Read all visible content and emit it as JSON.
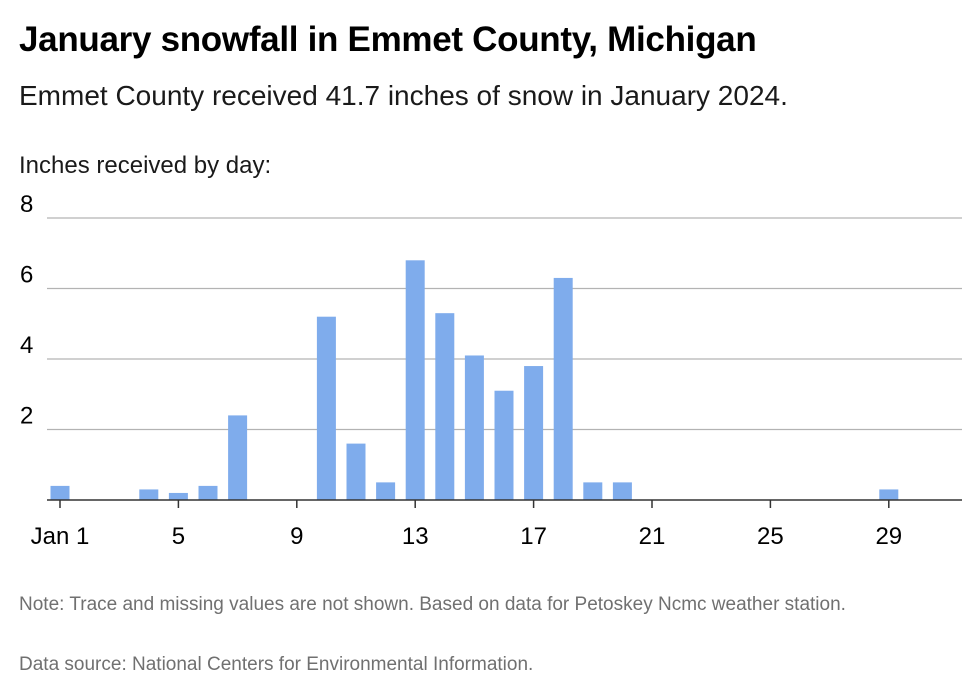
{
  "title": "January snowfall in Emmet County, Michigan",
  "subtitle": "Emmet County received 41.7 inches of snow in January 2024.",
  "axis_title": "Inches received by day:",
  "note": "Note: Trace and missing values are not shown. Based on data for Petoskey Ncmc weather station.",
  "source": "Data source: National Centers for Environmental Information.",
  "colors": {
    "bar": "#7facec",
    "grid": "#b3b3b3",
    "baseline": "#333333"
  },
  "chart_data": {
    "type": "bar",
    "title": "January snowfall in Emmet County, Michigan",
    "ylabel": "Inches received by day:",
    "ylim": [
      0,
      8
    ],
    "yticks": [
      2,
      4,
      6,
      8
    ],
    "xticks": [
      {
        "day": 1,
        "label": "Jan 1"
      },
      {
        "day": 5,
        "label": "5"
      },
      {
        "day": 9,
        "label": "9"
      },
      {
        "day": 13,
        "label": "13"
      },
      {
        "day": 17,
        "label": "17"
      },
      {
        "day": 21,
        "label": "21"
      },
      {
        "day": 25,
        "label": "25"
      },
      {
        "day": 29,
        "label": "29"
      }
    ],
    "x": [
      1,
      2,
      3,
      4,
      5,
      6,
      7,
      8,
      9,
      10,
      11,
      12,
      13,
      14,
      15,
      16,
      17,
      18,
      19,
      20,
      21,
      22,
      23,
      24,
      25,
      26,
      27,
      28,
      29,
      30,
      31
    ],
    "values": [
      0.4,
      0,
      0,
      0.3,
      0.2,
      0.4,
      2.4,
      0,
      0,
      5.2,
      1.6,
      0.5,
      6.8,
      5.3,
      4.1,
      3.1,
      3.8,
      6.3,
      0.5,
      0.5,
      0,
      0,
      0,
      0,
      0,
      0,
      0,
      0,
      0.3,
      0,
      0
    ],
    "grid": true
  }
}
